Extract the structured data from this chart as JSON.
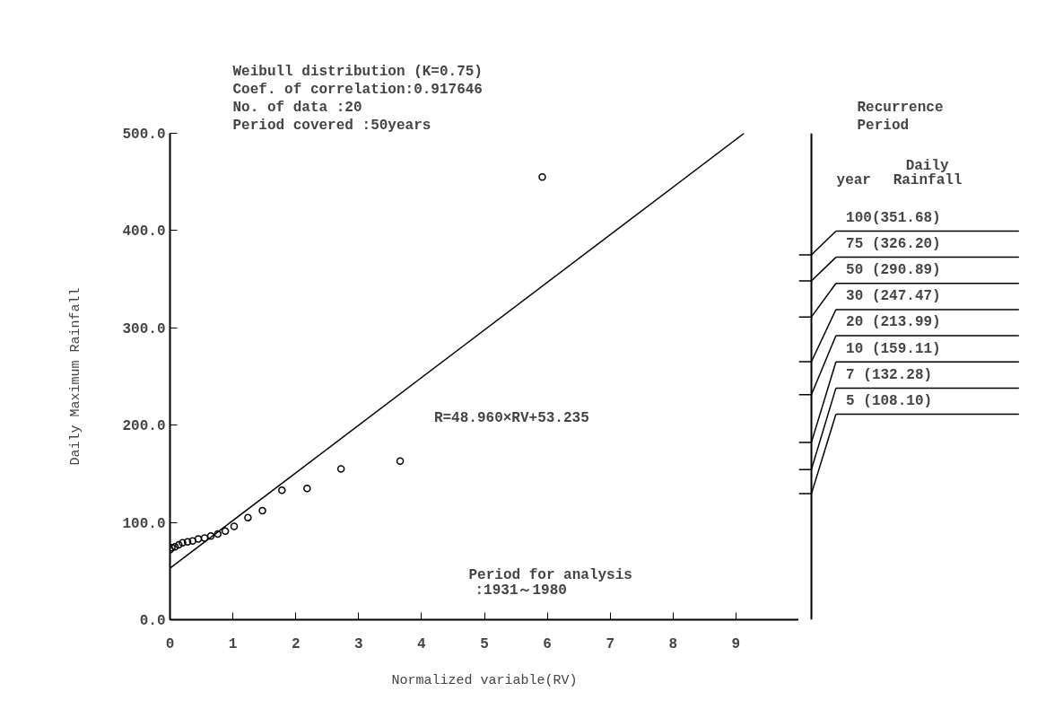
{
  "chart_data": {
    "type": "scatter",
    "title": "Weibull distribution (K=0.75)",
    "xlabel": "Normalized variable(RV)",
    "ylabel": "Daily Maximum Rainfall",
    "xlim": [
      0,
      10
    ],
    "ylim": [
      0,
      500
    ],
    "xticks": [
      0,
      1,
      2,
      3,
      4,
      5,
      6,
      7,
      8,
      9
    ],
    "yticks": [
      {
        "value": 0,
        "label": "0.0"
      },
      {
        "value": 100,
        "label": "100.0"
      },
      {
        "value": 200,
        "label": "200.0"
      },
      {
        "value": 300,
        "label": "300.0"
      },
      {
        "value": 400,
        "label": "400.0"
      },
      {
        "value": 500,
        "label": "500.0"
      }
    ],
    "grid": false,
    "series": [
      {
        "marker": "circle",
        "color": "#000000",
        "x": [
          0.0,
          0.03,
          0.08,
          0.14,
          0.2,
          0.28,
          0.36,
          0.45,
          0.55,
          0.65,
          0.76,
          0.88,
          1.02,
          1.24,
          1.47,
          1.78,
          2.18,
          2.72,
          3.66,
          5.92
        ],
        "values": [
          72,
          74,
          75,
          77,
          79,
          80,
          81,
          83,
          84,
          86,
          88,
          91,
          96,
          105,
          112,
          133,
          135,
          155,
          163,
          455
        ]
      },
      {
        "type": "line",
        "color": "#000000",
        "x": [
          0,
          9.13
        ],
        "values": [
          53,
          500
        ]
      }
    ],
    "annotations": [
      "Coef. of correlation:0.917646",
      "No. of data         :20",
      "Period covered      :50years",
      "R=48.960×RV+53.235",
      "Period for analysis",
      ":1931～1980",
      "Recurrence",
      "Period",
      "Daily",
      "year",
      "Rainfall",
      "100(351.68)",
      "75  (326.20)",
      "50  (290.89)",
      "30  (247.47)",
      "20  (213.99)",
      "10  (159.11)",
      "7   (132.28)",
      "5   (108.10)"
    ]
  }
}
